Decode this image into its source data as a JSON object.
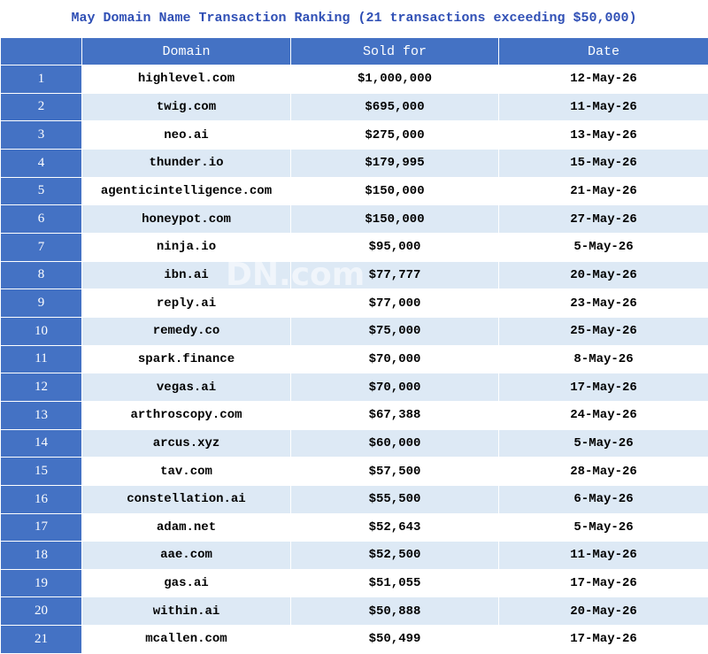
{
  "header": {
    "title": "May Domain Name Transaction Ranking (21 transactions exceeding $50,000)"
  },
  "watermark": "DN.com",
  "table": {
    "columns": [
      "Domain",
      "Sold for",
      "Date"
    ],
    "rows": [
      [
        1,
        "highlevel.com",
        "$1,000,000",
        "12-May-26"
      ],
      [
        2,
        "twig.com",
        "$695,000",
        "11-May-26"
      ],
      [
        3,
        "neo.ai",
        "$275,000",
        "13-May-26"
      ],
      [
        4,
        "thunder.io",
        "$179,995",
        "15-May-26"
      ],
      [
        5,
        "agenticintelligence.com",
        "$150,000",
        "21-May-26"
      ],
      [
        6,
        "honeypot.com",
        "$150,000",
        "27-May-26"
      ],
      [
        7,
        "ninja.io",
        "$95,000",
        "5-May-26"
      ],
      [
        8,
        "ibn.ai",
        "$77,777",
        "20-May-26"
      ],
      [
        9,
        "reply.ai",
        "$77,000",
        "23-May-26"
      ],
      [
        10,
        "remedy.co",
        "$75,000",
        "25-May-26"
      ],
      [
        11,
        "spark.finance",
        "$70,000",
        "8-May-26"
      ],
      [
        12,
        "vegas.ai",
        "$70,000",
        "17-May-26"
      ],
      [
        13,
        "arthroscopy.com",
        "$67,388",
        "24-May-26"
      ],
      [
        14,
        "arcus.xyz",
        "$60,000",
        "5-May-26"
      ],
      [
        15,
        "tav.com",
        "$57,500",
        "28-May-26"
      ],
      [
        16,
        "constellation.ai",
        "$55,500",
        "6-May-26"
      ],
      [
        17,
        "adam.net",
        "$52,643",
        "5-May-26"
      ],
      [
        18,
        "aae.com",
        "$52,500",
        "11-May-26"
      ],
      [
        19,
        "gas.ai",
        "$51,055",
        "17-May-26"
      ],
      [
        20,
        "within.ai",
        "$50,888",
        "20-May-26"
      ],
      [
        21,
        "mcallen.com",
        "$50,499",
        "17-May-26"
      ]
    ]
  }
}
